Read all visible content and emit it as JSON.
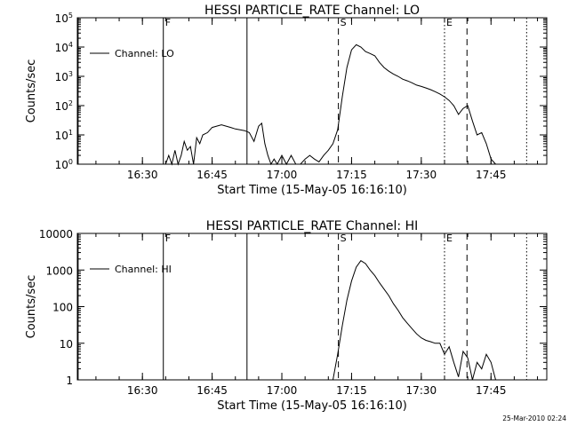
{
  "timestamp": "25-Mar-2010 02:24",
  "chart_data": [
    {
      "type": "line",
      "title": "HESSI PARTICLE_RATE Channel: LO",
      "xlabel": "Start Time (15-May-05 16:16:10)",
      "ylabel": "Counts/sec",
      "y_scale": "log",
      "ylim": [
        1,
        100000
      ],
      "xlim": [
        "16:16",
        "17:57"
      ],
      "x_ticks": [
        "16:30",
        "16:45",
        "17:00",
        "17:15",
        "17:30",
        "17:45"
      ],
      "y_ticks": [
        "10^0",
        "10^1",
        "10^2",
        "10^3",
        "10^4",
        "10^5"
      ],
      "legend": "top-left",
      "series": [
        {
          "name": "Channel: LO",
          "x": [
            "16:35:00",
            "16:35:40",
            "16:36:20",
            "16:37:00",
            "16:37:40",
            "16:38:20",
            "16:39:00",
            "16:39:40",
            "16:40:20",
            "16:41:00",
            "16:41:40",
            "16:42:20",
            "16:43:00",
            "16:44:00",
            "16:45:00",
            "16:46:00",
            "16:47:00",
            "16:48:00",
            "16:49:00",
            "16:50:00",
            "16:51:00",
            "16:52:00",
            "16:53:00",
            "16:54:00",
            "16:55:00",
            "16:55:40",
            "16:56:20",
            "16:57:00",
            "16:57:40",
            "16:58:20",
            "16:59:00",
            "17:00:00",
            "17:01:00",
            "17:02:00",
            "17:03:00",
            "17:04:00",
            "17:05:00",
            "17:06:00",
            "17:07:00",
            "17:08:00",
            "17:09:00",
            "17:10:00",
            "17:11:00",
            "17:12:00",
            "17:13:00",
            "17:14:00",
            "17:15:00",
            "17:16:00",
            "17:17:00",
            "17:18:00",
            "17:19:00",
            "17:20:00",
            "17:21:00",
            "17:22:00",
            "17:23:00",
            "17:24:00",
            "17:25:00",
            "17:26:00",
            "17:27:00",
            "17:28:00",
            "17:29:00",
            "17:30:00",
            "17:31:00",
            "17:32:00",
            "17:33:00",
            "17:34:00",
            "17:35:00",
            "17:36:00",
            "17:37:00",
            "17:38:00",
            "17:39:00",
            "17:40:00",
            "17:41:00",
            "17:42:00",
            "17:43:00",
            "17:44:00",
            "17:45:00",
            "17:46:00"
          ],
          "values": [
            1,
            2,
            1,
            3,
            1,
            2,
            6,
            3,
            4,
            1,
            8,
            5,
            10,
            12,
            18,
            20,
            22,
            20,
            18,
            16,
            15,
            14,
            12,
            6,
            20,
            25,
            5,
            2,
            1,
            1.5,
            1,
            2,
            1,
            2,
            1,
            1,
            1.5,
            2,
            1.5,
            1.2,
            2,
            3,
            5,
            15,
            200,
            2000,
            8000,
            12000,
            10000,
            7000,
            6000,
            5000,
            3000,
            2000,
            1500,
            1200,
            1000,
            800,
            700,
            600,
            500,
            450,
            400,
            350,
            300,
            250,
            200,
            150,
            100,
            50,
            80,
            100,
            30,
            10,
            12,
            5,
            1.5,
            1
          ]
        }
      ],
      "markers": [
        {
          "label": "",
          "x": "16:16:10",
          "style": "solid"
        },
        {
          "label": "F",
          "x": "16:34:30",
          "style": "solid"
        },
        {
          "label": "",
          "x": "16:52:30",
          "style": "solid"
        },
        {
          "label": "S",
          "x": "17:12:10",
          "style": "dashed"
        },
        {
          "label": "E",
          "x": "17:35:00",
          "style": "dotted"
        },
        {
          "label": "",
          "x": "17:39:50",
          "style": "dashed"
        },
        {
          "label": "",
          "x": "17:52:40",
          "style": "dotted"
        }
      ]
    },
    {
      "type": "line",
      "title": "HESSI PARTICLE_RATE Channel: HI",
      "xlabel": "Start Time (15-May-05 16:16:10)",
      "ylabel": "Counts/sec",
      "y_scale": "log",
      "ylim": [
        1,
        10000
      ],
      "xlim": [
        "16:16",
        "17:57"
      ],
      "x_ticks": [
        "16:30",
        "16:45",
        "17:00",
        "17:15",
        "17:30",
        "17:45"
      ],
      "y_ticks": [
        "1",
        "10",
        "100",
        "1000",
        "10000"
      ],
      "legend": "top-left",
      "series": [
        {
          "name": "Channel: HI",
          "x": [
            "17:11:00",
            "17:12:00",
            "17:13:00",
            "17:14:00",
            "17:15:00",
            "17:16:00",
            "17:17:00",
            "17:18:00",
            "17:19:00",
            "17:20:00",
            "17:21:00",
            "17:22:00",
            "17:23:00",
            "17:24:00",
            "17:25:00",
            "17:26:00",
            "17:27:00",
            "17:28:00",
            "17:29:00",
            "17:30:00",
            "17:31:00",
            "17:32:00",
            "17:33:00",
            "17:34:00",
            "17:35:00",
            "17:36:00",
            "17:37:00",
            "17:38:00",
            "17:39:00",
            "17:40:00",
            "17:41:00",
            "17:42:00",
            "17:43:00",
            "17:44:00",
            "17:45:00",
            "17:46:00"
          ],
          "values": [
            1,
            5,
            30,
            150,
            500,
            1200,
            1800,
            1500,
            1000,
            700,
            450,
            300,
            200,
            120,
            80,
            50,
            35,
            25,
            18,
            14,
            12,
            11,
            10,
            10,
            5,
            8,
            3,
            1.2,
            6,
            4,
            1,
            3,
            2,
            5,
            3,
            1
          ]
        }
      ],
      "markers": [
        {
          "label": "",
          "x": "16:16:10",
          "style": "solid"
        },
        {
          "label": "F",
          "x": "16:34:30",
          "style": "solid"
        },
        {
          "label": "",
          "x": "16:52:30",
          "style": "solid"
        },
        {
          "label": "S",
          "x": "17:12:10",
          "style": "dashed"
        },
        {
          "label": "E",
          "x": "17:35:00",
          "style": "dotted"
        },
        {
          "label": "",
          "x": "17:39:50",
          "style": "dashed"
        },
        {
          "label": "",
          "x": "17:52:40",
          "style": "dotted"
        }
      ]
    }
  ]
}
